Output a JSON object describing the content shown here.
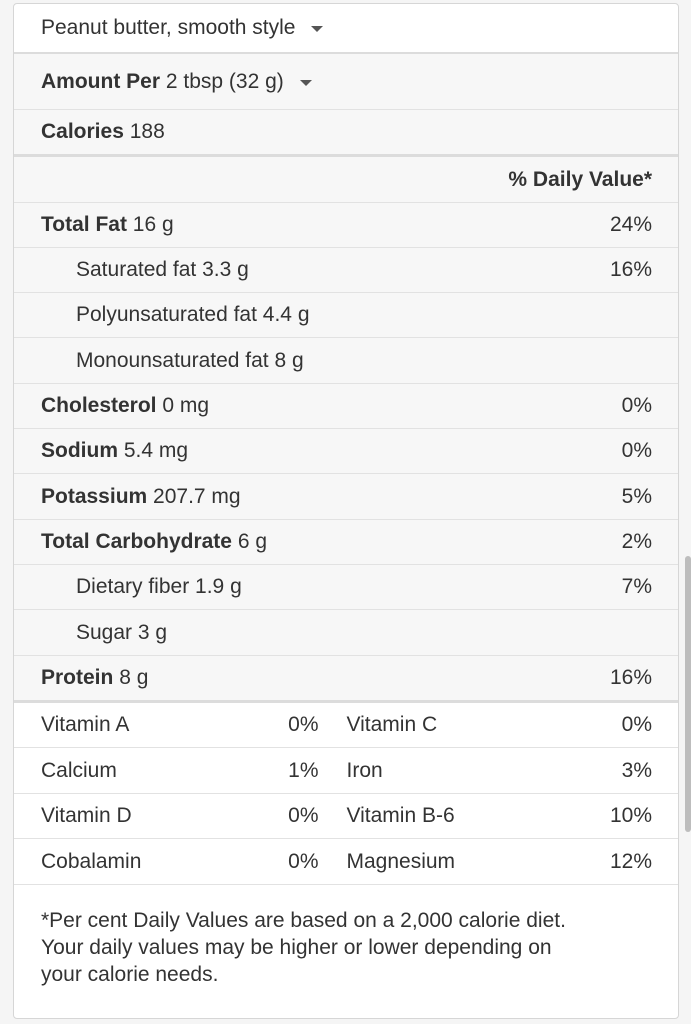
{
  "food": {
    "name": "Peanut butter, smooth style"
  },
  "serving": {
    "prefix": "Amount Per",
    "size": "2 tbsp (32 g)"
  },
  "calories": {
    "label": "Calories",
    "value": "188"
  },
  "daily_value_header": "% Daily Value*",
  "nutrients": [
    {
      "label": "Total Fat",
      "amount": "16 g",
      "pct": "24%"
    },
    {
      "label": "Saturated fat",
      "amount": "3.3 g",
      "pct": "16%"
    },
    {
      "label": "Polyunsaturated fat",
      "amount": "4.4 g",
      "pct": ""
    },
    {
      "label": "Monounsaturated fat",
      "amount": "8 g",
      "pct": ""
    },
    {
      "label": "Cholesterol",
      "amount": "0 mg",
      "pct": "0%"
    },
    {
      "label": "Sodium",
      "amount": "5.4 mg",
      "pct": "0%"
    },
    {
      "label": "Potassium",
      "amount": "207.7 mg",
      "pct": "5%"
    },
    {
      "label": "Total Carbohydrate",
      "amount": "6 g",
      "pct": "2%"
    },
    {
      "label": "Dietary fiber",
      "amount": "1.9 g",
      "pct": "7%"
    },
    {
      "label": "Sugar",
      "amount": "3 g",
      "pct": ""
    },
    {
      "label": "Protein",
      "amount": "8 g",
      "pct": "16%"
    }
  ],
  "vitamins": [
    {
      "left_name": "Vitamin A",
      "left_pct": "0%",
      "right_name": "Vitamin C",
      "right_pct": "0%"
    },
    {
      "left_name": "Calcium",
      "left_pct": "1%",
      "right_name": "Iron",
      "right_pct": "3%"
    },
    {
      "left_name": "Vitamin D",
      "left_pct": "0%",
      "right_name": "Vitamin B-6",
      "right_pct": "10%"
    },
    {
      "left_name": "Cobalamin",
      "left_pct": "0%",
      "right_name": "Magnesium",
      "right_pct": "12%"
    }
  ],
  "footnote": {
    "line1": "*Per cent Daily Values are based on a 2,000 calorie diet.",
    "line2": "Your daily values may be higher or lower depending on",
    "line3": "your calorie needs."
  },
  "icons": {
    "food_dropdown": "caret-down-icon",
    "serving_dropdown": "caret-down-icon"
  }
}
